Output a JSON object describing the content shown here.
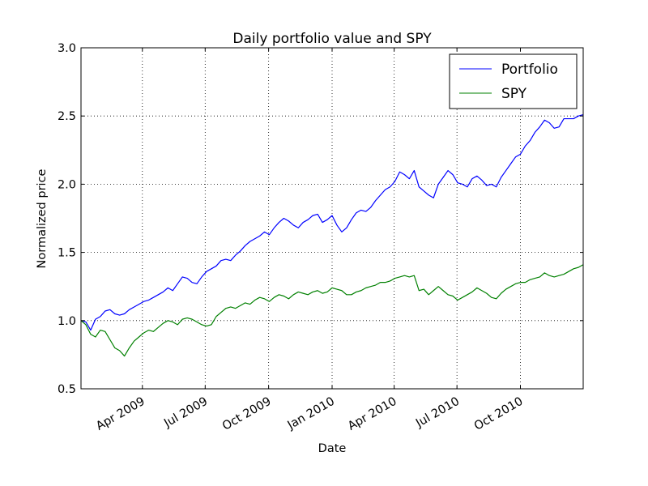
{
  "chart_data": {
    "type": "line",
    "title": "Daily portfolio value and SPY",
    "xlabel": "Date",
    "ylabel": "Normalized price",
    "ylim": [
      0.5,
      3.0
    ],
    "xlim": [
      "2009-01-02",
      "2010-12-31"
    ],
    "yticks": [
      "0.5",
      "1.0",
      "1.5",
      "2.0",
      "2.5",
      "3.0"
    ],
    "xticks": [
      {
        "date": "2009-04-01",
        "label": "Apr 2009"
      },
      {
        "date": "2009-07-01",
        "label": "Jul 2009"
      },
      {
        "date": "2009-10-01",
        "label": "Oct 2009"
      },
      {
        "date": "2010-01-01",
        "label": "Jan 2010"
      },
      {
        "date": "2010-04-01",
        "label": "Apr 2010"
      },
      {
        "date": "2010-07-01",
        "label": "Jul 2010"
      },
      {
        "date": "2010-10-01",
        "label": "Oct 2010"
      }
    ],
    "grid": true,
    "legend_position": "top-right",
    "series": [
      {
        "name": "Portfolio",
        "color": "#0000ff",
        "x": [
          "2009-01-02",
          "2009-01-09",
          "2009-01-16",
          "2009-01-23",
          "2009-01-30",
          "2009-02-06",
          "2009-02-13",
          "2009-02-20",
          "2009-02-27",
          "2009-03-06",
          "2009-03-13",
          "2009-03-20",
          "2009-03-27",
          "2009-04-03",
          "2009-04-10",
          "2009-04-17",
          "2009-04-24",
          "2009-05-01",
          "2009-05-08",
          "2009-05-15",
          "2009-05-22",
          "2009-05-29",
          "2009-06-05",
          "2009-06-12",
          "2009-06-19",
          "2009-06-26",
          "2009-07-03",
          "2009-07-10",
          "2009-07-17",
          "2009-07-24",
          "2009-07-31",
          "2009-08-07",
          "2009-08-14",
          "2009-08-21",
          "2009-08-28",
          "2009-09-04",
          "2009-09-11",
          "2009-09-18",
          "2009-09-25",
          "2009-10-02",
          "2009-10-09",
          "2009-10-16",
          "2009-10-23",
          "2009-10-30",
          "2009-11-06",
          "2009-11-13",
          "2009-11-20",
          "2009-11-27",
          "2009-12-04",
          "2009-12-11",
          "2009-12-18",
          "2009-12-25",
          "2010-01-01",
          "2010-01-08",
          "2010-01-15",
          "2010-01-22",
          "2010-01-29",
          "2010-02-05",
          "2010-02-12",
          "2010-02-19",
          "2010-02-26",
          "2010-03-05",
          "2010-03-12",
          "2010-03-19",
          "2010-03-26",
          "2010-04-02",
          "2010-04-09",
          "2010-04-16",
          "2010-04-23",
          "2010-04-30",
          "2010-05-07",
          "2010-05-14",
          "2010-05-21",
          "2010-05-28",
          "2010-06-04",
          "2010-06-11",
          "2010-06-18",
          "2010-06-25",
          "2010-07-02",
          "2010-07-09",
          "2010-07-16",
          "2010-07-23",
          "2010-07-30",
          "2010-08-06",
          "2010-08-13",
          "2010-08-20",
          "2010-08-27",
          "2010-09-03",
          "2010-09-10",
          "2010-09-17",
          "2010-09-24",
          "2010-10-01",
          "2010-10-08",
          "2010-10-15",
          "2010-10-22",
          "2010-10-29",
          "2010-11-05",
          "2010-11-12",
          "2010-11-19",
          "2010-11-26",
          "2010-12-03",
          "2010-12-10",
          "2010-12-17",
          "2010-12-24",
          "2010-12-31"
        ],
        "values": [
          1.0,
          0.99,
          0.93,
          1.01,
          1.03,
          1.07,
          1.08,
          1.05,
          1.04,
          1.05,
          1.08,
          1.1,
          1.12,
          1.14,
          1.15,
          1.17,
          1.19,
          1.21,
          1.24,
          1.22,
          1.27,
          1.32,
          1.31,
          1.28,
          1.27,
          1.32,
          1.36,
          1.38,
          1.4,
          1.44,
          1.45,
          1.44,
          1.48,
          1.51,
          1.55,
          1.58,
          1.6,
          1.62,
          1.65,
          1.63,
          1.68,
          1.72,
          1.75,
          1.73,
          1.7,
          1.68,
          1.72,
          1.74,
          1.77,
          1.78,
          1.72,
          1.74,
          1.77,
          1.7,
          1.65,
          1.68,
          1.74,
          1.79,
          1.81,
          1.8,
          1.83,
          1.88,
          1.92,
          1.96,
          1.98,
          2.02,
          2.09,
          2.07,
          2.04,
          2.1,
          1.98,
          1.95,
          1.92,
          1.9,
          2.0,
          2.05,
          2.1,
          2.07,
          2.01,
          2.0,
          1.98,
          2.04,
          2.06,
          2.03,
          1.99,
          2.0,
          1.98,
          2.05,
          2.1,
          2.15,
          2.2,
          2.22,
          2.28,
          2.32,
          2.38,
          2.42,
          2.47,
          2.45,
          2.41,
          2.42,
          2.48,
          2.48,
          2.48,
          2.5,
          2.51
        ]
      },
      {
        "name": "SPY",
        "color": "#008000",
        "x": [
          "2009-01-02",
          "2009-01-09",
          "2009-01-16",
          "2009-01-23",
          "2009-01-30",
          "2009-02-06",
          "2009-02-13",
          "2009-02-20",
          "2009-02-27",
          "2009-03-06",
          "2009-03-13",
          "2009-03-20",
          "2009-03-27",
          "2009-04-03",
          "2009-04-10",
          "2009-04-17",
          "2009-04-24",
          "2009-05-01",
          "2009-05-08",
          "2009-05-15",
          "2009-05-22",
          "2009-05-29",
          "2009-06-05",
          "2009-06-12",
          "2009-06-19",
          "2009-06-26",
          "2009-07-03",
          "2009-07-10",
          "2009-07-17",
          "2009-07-24",
          "2009-07-31",
          "2009-08-07",
          "2009-08-14",
          "2009-08-21",
          "2009-08-28",
          "2009-09-04",
          "2009-09-11",
          "2009-09-18",
          "2009-09-25",
          "2009-10-02",
          "2009-10-09",
          "2009-10-16",
          "2009-10-23",
          "2009-10-30",
          "2009-11-06",
          "2009-11-13",
          "2009-11-20",
          "2009-11-27",
          "2009-12-04",
          "2009-12-11",
          "2009-12-18",
          "2009-12-25",
          "2010-01-01",
          "2010-01-08",
          "2010-01-15",
          "2010-01-22",
          "2010-01-29",
          "2010-02-05",
          "2010-02-12",
          "2010-02-19",
          "2010-02-26",
          "2010-03-05",
          "2010-03-12",
          "2010-03-19",
          "2010-03-26",
          "2010-04-02",
          "2010-04-09",
          "2010-04-16",
          "2010-04-23",
          "2010-04-30",
          "2010-05-07",
          "2010-05-14",
          "2010-05-21",
          "2010-05-28",
          "2010-06-04",
          "2010-06-11",
          "2010-06-18",
          "2010-06-25",
          "2010-07-02",
          "2010-07-09",
          "2010-07-16",
          "2010-07-23",
          "2010-07-30",
          "2010-08-06",
          "2010-08-13",
          "2010-08-20",
          "2010-08-27",
          "2010-09-03",
          "2010-09-10",
          "2010-09-17",
          "2010-09-24",
          "2010-10-01",
          "2010-10-08",
          "2010-10-15",
          "2010-10-22",
          "2010-10-29",
          "2010-11-05",
          "2010-11-12",
          "2010-11-19",
          "2010-11-26",
          "2010-12-03",
          "2010-12-10",
          "2010-12-17",
          "2010-12-24",
          "2010-12-31"
        ],
        "values": [
          1.0,
          0.97,
          0.9,
          0.88,
          0.93,
          0.92,
          0.86,
          0.8,
          0.78,
          0.74,
          0.8,
          0.85,
          0.88,
          0.91,
          0.93,
          0.92,
          0.95,
          0.98,
          1.0,
          0.99,
          0.97,
          1.01,
          1.02,
          1.01,
          0.99,
          0.97,
          0.96,
          0.97,
          1.03,
          1.06,
          1.09,
          1.1,
          1.09,
          1.11,
          1.13,
          1.12,
          1.15,
          1.17,
          1.16,
          1.14,
          1.17,
          1.19,
          1.18,
          1.16,
          1.19,
          1.21,
          1.2,
          1.19,
          1.21,
          1.22,
          1.2,
          1.21,
          1.24,
          1.23,
          1.22,
          1.19,
          1.19,
          1.21,
          1.22,
          1.24,
          1.25,
          1.26,
          1.28,
          1.28,
          1.29,
          1.31,
          1.32,
          1.33,
          1.32,
          1.33,
          1.22,
          1.23,
          1.19,
          1.22,
          1.25,
          1.22,
          1.19,
          1.18,
          1.15,
          1.17,
          1.19,
          1.21,
          1.24,
          1.22,
          1.2,
          1.17,
          1.16,
          1.2,
          1.23,
          1.25,
          1.27,
          1.28,
          1.28,
          1.3,
          1.31,
          1.32,
          1.35,
          1.33,
          1.32,
          1.33,
          1.34,
          1.36,
          1.38,
          1.39,
          1.41
        ]
      }
    ]
  }
}
